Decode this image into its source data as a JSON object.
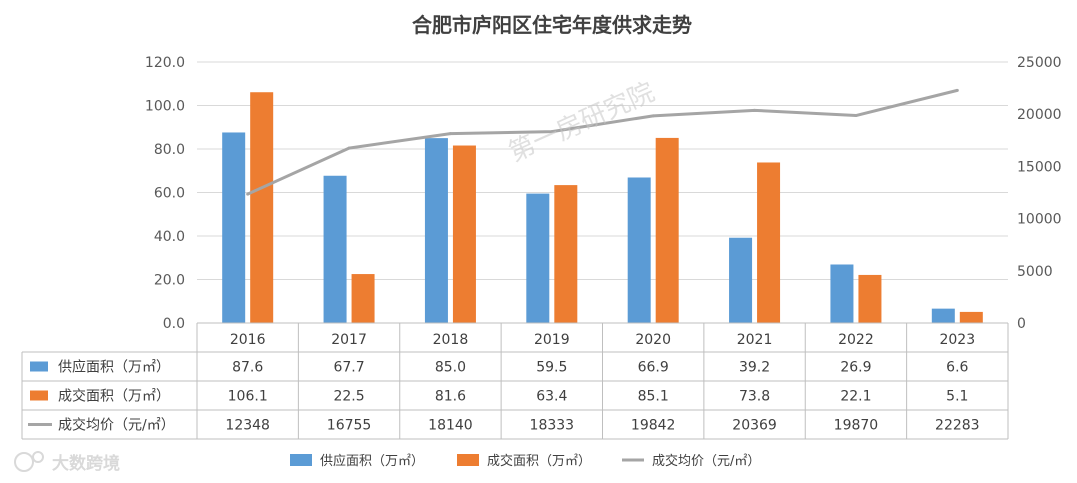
{
  "chart_data": {
    "type": "bar",
    "title": "合肥市庐阳区住宅年度供求走势",
    "categories": [
      "2016",
      "2017",
      "2018",
      "2019",
      "2020",
      "2021",
      "2022",
      "2023"
    ],
    "series": [
      {
        "name": "供应面积（万㎡）",
        "type": "bar",
        "axis": "left",
        "color": "#5b9bd5",
        "values": [
          87.6,
          67.7,
          85.0,
          59.5,
          66.9,
          39.2,
          26.9,
          6.6
        ],
        "labels": [
          "87.6",
          "67.7",
          "85.0",
          "59.5",
          "66.9",
          "39.2",
          "26.9",
          "6.6"
        ]
      },
      {
        "name": "成交面积（万㎡）",
        "type": "bar",
        "axis": "left",
        "color": "#ed7d31",
        "values": [
          106.1,
          22.5,
          81.6,
          63.4,
          85.1,
          73.8,
          22.1,
          5.1
        ],
        "labels": [
          "106.1",
          "22.5",
          "81.6",
          "63.4",
          "85.1",
          "73.8",
          "22.1",
          "5.1"
        ]
      },
      {
        "name": "成交均价（元/㎡）",
        "type": "line",
        "axis": "right",
        "color": "#a5a5a5",
        "values": [
          12348,
          16755,
          18140,
          18333,
          19842,
          20369,
          19870,
          22283
        ],
        "labels": [
          "12348",
          "16755",
          "18140",
          "18333",
          "19842",
          "20369",
          "19870",
          "22283"
        ]
      }
    ],
    "y_left": {
      "min": 0,
      "max": 120,
      "ticks": [
        "0.0",
        "20.0",
        "40.0",
        "60.0",
        "80.0",
        "100.0",
        "120.0"
      ]
    },
    "y_right": {
      "min": 0,
      "max": 25000,
      "ticks": [
        "0",
        "5000",
        "10000",
        "15000",
        "20000",
        "25000"
      ]
    },
    "grid": true,
    "data_table": true,
    "legend_position": "bottom"
  },
  "watermark": "第一房研究院",
  "brand": "大数跨境"
}
